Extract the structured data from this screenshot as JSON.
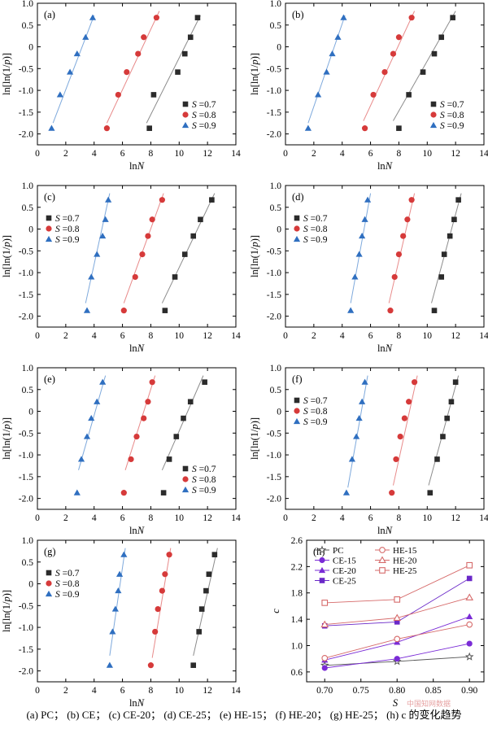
{
  "caption": "(a) PC； (b) CE； (c) CE-20； (d) CE-25； (e) HE-15； (f) HE-20； (g) HE-25； (h) c 的变化趋势",
  "watermark": "中国知网数据",
  "colors": {
    "s07": "#2b2b2b",
    "s08": "#d63a3a",
    "s09": "#2f6fc0",
    "fit07": "#8c8c8c",
    "fit08": "#e88a8a",
    "fit09": "#7ea9dc"
  },
  "chart_data": [
    {
      "type": "scatter",
      "label": "(a)",
      "xlabel": "lnN",
      "ylabel": "ln[ln(1/p)]",
      "xlim": [
        0,
        14
      ],
      "ylim": [
        -2.25,
        1.0
      ],
      "xticks": [
        "0",
        "2",
        "4",
        "6",
        "8",
        "10",
        "12",
        "14"
      ],
      "yticks": [
        "1.0",
        "0.5",
        "0",
        "-0.5",
        "-1.0",
        "-1.5",
        "-2.0"
      ],
      "legend": "bottom-right",
      "series": [
        {
          "name": "S =0.7",
          "marker": "square",
          "color": "#2b2b2b",
          "x": [
            7.9,
            8.2,
            9.9,
            10.4,
            10.8,
            11.3
          ],
          "y": [
            -1.87,
            -1.1,
            -0.58,
            -0.16,
            0.22,
            0.67
          ],
          "fit": [
            [
              7.7,
              -1.75
            ],
            [
              11.5,
              0.72
            ]
          ]
        },
        {
          "name": "S =0.8",
          "marker": "circle",
          "color": "#d63a3a",
          "x": [
            4.9,
            5.7,
            6.3,
            7.1,
            7.5,
            8.4
          ],
          "y": [
            -1.87,
            -1.1,
            -0.58,
            -0.16,
            0.22,
            0.67
          ],
          "fit": [
            [
              4.9,
              -1.75
            ],
            [
              8.6,
              0.82
            ]
          ]
        },
        {
          "name": "S =0.9",
          "marker": "triangle",
          "color": "#2f6fc0",
          "x": [
            1.0,
            1.6,
            2.3,
            2.8,
            3.4,
            3.9
          ],
          "y": [
            -1.87,
            -1.1,
            -0.58,
            -0.16,
            0.22,
            0.67
          ],
          "fit": [
            [
              1.1,
              -1.75
            ],
            [
              4.0,
              0.72
            ]
          ]
        }
      ]
    },
    {
      "type": "scatter",
      "label": "(b)",
      "xlabel": "lnN",
      "ylabel": "ln[ln(1/p)]",
      "xlim": [
        0,
        14
      ],
      "ylim": [
        -2.25,
        1.0
      ],
      "xticks": [
        "0",
        "2",
        "4",
        "6",
        "8",
        "10",
        "12",
        "14"
      ],
      "yticks": [
        "1.0",
        "0.5",
        "0",
        "-0.5",
        "-1.0",
        "-1.5",
        "-2.0"
      ],
      "legend": "bottom-right",
      "series": [
        {
          "name": "S =0.7",
          "marker": "square",
          "color": "#2b2b2b",
          "x": [
            8.0,
            8.7,
            9.7,
            10.5,
            11.0,
            11.8
          ],
          "y": [
            -1.87,
            -1.1,
            -0.58,
            -0.16,
            0.22,
            0.67
          ],
          "fit": [
            [
              7.6,
              -1.7
            ],
            [
              12.0,
              0.82
            ]
          ]
        },
        {
          "name": "S =0.8",
          "marker": "circle",
          "color": "#d63a3a",
          "x": [
            5.6,
            6.2,
            7.0,
            7.6,
            8.0,
            8.9
          ],
          "y": [
            -1.87,
            -1.1,
            -0.58,
            -0.16,
            0.22,
            0.67
          ],
          "fit": [
            [
              5.5,
              -1.7
            ],
            [
              9.1,
              0.82
            ]
          ]
        },
        {
          "name": "S =0.9",
          "marker": "triangle",
          "color": "#2f6fc0",
          "x": [
            1.6,
            2.3,
            2.9,
            3.3,
            3.7,
            4.1
          ],
          "y": [
            -1.87,
            -1.1,
            -0.58,
            -0.16,
            0.22,
            0.67
          ],
          "fit": [
            [
              1.6,
              -1.75
            ],
            [
              4.2,
              0.72
            ]
          ]
        }
      ]
    },
    {
      "type": "scatter",
      "label": "(c)",
      "xlabel": "lnN",
      "ylabel": "ln[ln(1/p)]",
      "xlim": [
        0,
        14
      ],
      "ylim": [
        -2.25,
        1.0
      ],
      "xticks": [
        "0",
        "2",
        "4",
        "6",
        "8",
        "10",
        "12",
        "14"
      ],
      "yticks": [
        "1.0",
        "0.5",
        "0",
        "-0.5",
        "-1.0",
        "-1.5",
        "-2.0"
      ],
      "legend": "top-left",
      "series": [
        {
          "name": "S =0.7",
          "marker": "square",
          "color": "#2b2b2b",
          "x": [
            9.0,
            9.7,
            10.4,
            11.0,
            11.5,
            12.3
          ],
          "y": [
            -1.87,
            -1.1,
            -0.58,
            -0.16,
            0.22,
            0.67
          ],
          "fit": [
            [
              8.8,
              -1.7
            ],
            [
              12.5,
              0.82
            ]
          ]
        },
        {
          "name": "S =0.8",
          "marker": "circle",
          "color": "#d63a3a",
          "x": [
            6.1,
            6.9,
            7.4,
            7.8,
            8.1,
            8.8
          ],
          "y": [
            -1.87,
            -1.1,
            -0.58,
            -0.16,
            0.22,
            0.67
          ],
          "fit": [
            [
              6.1,
              -1.7
            ],
            [
              8.9,
              0.82
            ]
          ]
        },
        {
          "name": "S =0.9",
          "marker": "triangle",
          "color": "#2f6fc0",
          "x": [
            3.5,
            3.8,
            4.2,
            4.6,
            4.8,
            5.0
          ],
          "y": [
            -1.87,
            -1.1,
            -0.58,
            -0.16,
            0.22,
            0.67
          ],
          "fit": [
            [
              3.4,
              -1.7
            ],
            [
              5.1,
              0.82
            ]
          ]
        }
      ]
    },
    {
      "type": "scatter",
      "label": "(d)",
      "xlabel": "lnN",
      "ylabel": "ln[ln(1/p)]",
      "xlim": [
        0,
        14
      ],
      "ylim": [
        -2.25,
        1.0
      ],
      "xticks": [
        "0",
        "2",
        "4",
        "6",
        "8",
        "10",
        "12",
        "14"
      ],
      "yticks": [
        "1.0",
        "0.5",
        "0",
        "-0.5",
        "-1.0",
        "-1.5",
        "-2.0"
      ],
      "legend": "top-left",
      "series": [
        {
          "name": "S =0.7",
          "marker": "square",
          "color": "#2b2b2b",
          "x": [
            10.5,
            11.0,
            11.2,
            11.6,
            11.9,
            12.2
          ],
          "y": [
            -1.87,
            -1.1,
            -0.58,
            -0.16,
            0.22,
            0.67
          ],
          "fit": [
            [
              10.3,
              -1.7
            ],
            [
              12.4,
              0.82
            ]
          ]
        },
        {
          "name": "S =0.8",
          "marker": "circle",
          "color": "#d63a3a",
          "x": [
            7.4,
            7.7,
            8.0,
            8.3,
            8.6,
            8.9
          ],
          "y": [
            -1.87,
            -1.1,
            -0.58,
            -0.16,
            0.22,
            0.67
          ],
          "fit": [
            [
              7.3,
              -1.7
            ],
            [
              9.1,
              0.82
            ]
          ]
        },
        {
          "name": "S =0.9",
          "marker": "triangle",
          "color": "#2f6fc0",
          "x": [
            4.6,
            4.9,
            5.2,
            5.4,
            5.6,
            5.8
          ],
          "y": [
            -1.87,
            -1.1,
            -0.58,
            -0.16,
            0.22,
            0.67
          ],
          "fit": [
            [
              4.6,
              -1.7
            ],
            [
              6.0,
              0.82
            ]
          ]
        }
      ]
    },
    {
      "type": "scatter",
      "label": "(e)",
      "xlabel": "lnN",
      "ylabel": "ln[ln(1/p)]",
      "xlim": [
        0,
        14
      ],
      "ylim": [
        -2.25,
        1.0
      ],
      "xticks": [
        "0",
        "2",
        "4",
        "6",
        "8",
        "10",
        "12",
        "14"
      ],
      "yticks": [
        "1.0",
        "0.5",
        "0",
        "-0.5",
        "-1.0",
        "-1.5",
        "-2.0"
      ],
      "legend": "bottom-right",
      "series": [
        {
          "name": "S =0.7",
          "marker": "square",
          "color": "#2b2b2b",
          "x": [
            8.9,
            9.3,
            9.8,
            10.3,
            10.8,
            11.8
          ],
          "y": [
            -1.87,
            -1.1,
            -0.58,
            -0.16,
            0.22,
            0.67
          ],
          "fit": [
            [
              8.8,
              -1.35
            ],
            [
              11.7,
              0.82
            ]
          ]
        },
        {
          "name": "S =0.8",
          "marker": "circle",
          "color": "#d63a3a",
          "x": [
            6.1,
            6.6,
            7.0,
            7.5,
            7.8,
            8.1
          ],
          "y": [
            -1.87,
            -1.1,
            -0.58,
            -0.16,
            0.22,
            0.67
          ],
          "fit": [
            [
              6.2,
              -1.35
            ],
            [
              8.3,
              0.82
            ]
          ]
        },
        {
          "name": "S =0.9",
          "marker": "triangle",
          "color": "#2f6fc0",
          "x": [
            2.8,
            3.1,
            3.5,
            3.8,
            4.2,
            4.6
          ],
          "y": [
            -1.87,
            -1.1,
            -0.58,
            -0.16,
            0.22,
            0.67
          ],
          "fit": [
            [
              2.9,
              -1.35
            ],
            [
              4.8,
              0.82
            ]
          ]
        }
      ]
    },
    {
      "type": "scatter",
      "label": "(f)",
      "xlabel": "lnN",
      "ylabel": "ln[ln(1/p)]",
      "xlim": [
        0,
        14
      ],
      "ylim": [
        -2.25,
        1.0
      ],
      "xticks": [
        "0",
        "2",
        "4",
        "6",
        "8",
        "10",
        "12",
        "14"
      ],
      "yticks": [
        "1.0",
        "0.5",
        "0",
        "-0.5",
        "-1.0",
        "-1.5",
        "-2.0"
      ],
      "legend": "top-left",
      "series": [
        {
          "name": "S =0.7",
          "marker": "square",
          "color": "#2b2b2b",
          "x": [
            10.2,
            10.7,
            11.1,
            11.4,
            11.7,
            12.0
          ],
          "y": [
            -1.87,
            -1.1,
            -0.58,
            -0.16,
            0.22,
            0.67
          ],
          "fit": [
            [
              10.1,
              -1.7
            ],
            [
              12.2,
              0.82
            ]
          ]
        },
        {
          "name": "S =0.8",
          "marker": "circle",
          "color": "#d63a3a",
          "x": [
            7.5,
            7.8,
            8.1,
            8.4,
            8.7,
            9.1
          ],
          "y": [
            -1.87,
            -1.1,
            -0.58,
            -0.16,
            0.22,
            0.67
          ],
          "fit": [
            [
              7.6,
              -1.7
            ],
            [
              9.3,
              0.82
            ]
          ]
        },
        {
          "name": "S =0.9",
          "marker": "triangle",
          "color": "#2f6fc0",
          "x": [
            4.3,
            4.7,
            5.0,
            5.2,
            5.4,
            5.6
          ],
          "y": [
            -1.87,
            -1.1,
            -0.58,
            -0.16,
            0.22,
            0.67
          ],
          "fit": [
            [
              4.4,
              -1.75
            ],
            [
              5.8,
              0.82
            ]
          ]
        }
      ]
    },
    {
      "type": "scatter",
      "label": "(g)",
      "xlabel": "lnN",
      "ylabel": "ln[ln(1/p)]",
      "xlim": [
        0,
        14
      ],
      "ylim": [
        -2.25,
        1.0
      ],
      "xticks": [
        "0",
        "2",
        "4",
        "6",
        "8",
        "10",
        "12",
        "14"
      ],
      "yticks": [
        "1.0",
        "0.5",
        "0",
        "-0.5",
        "-1.0",
        "-1.5",
        "-2.0"
      ],
      "legend": "top-left",
      "series": [
        {
          "name": "S =0.7",
          "marker": "square",
          "color": "#2b2b2b",
          "x": [
            11.0,
            11.4,
            11.6,
            11.9,
            12.1,
            12.5
          ],
          "y": [
            -1.87,
            -1.1,
            -0.58,
            -0.16,
            0.22,
            0.67
          ],
          "fit": [
            [
              11.0,
              -1.65
            ],
            [
              12.7,
              0.82
            ]
          ]
        },
        {
          "name": "S =0.8",
          "marker": "circle",
          "color": "#d63a3a",
          "x": [
            8.0,
            8.3,
            8.5,
            8.8,
            9.0,
            9.3
          ],
          "y": [
            -1.87,
            -1.1,
            -0.58,
            -0.16,
            0.22,
            0.67
          ],
          "fit": [
            [
              8.1,
              -1.7
            ],
            [
              9.4,
              0.82
            ]
          ]
        },
        {
          "name": "S =0.9",
          "marker": "triangle",
          "color": "#2f6fc0",
          "x": [
            5.1,
            5.3,
            5.5,
            5.7,
            5.8,
            6.1
          ],
          "y": [
            -1.87,
            -1.1,
            -0.58,
            -0.16,
            0.22,
            0.67
          ],
          "fit": [
            [
              5.1,
              -1.65
            ],
            [
              6.2,
              0.82
            ]
          ]
        }
      ]
    },
    {
      "type": "line",
      "label": "(h)",
      "xlabel": "S",
      "ylabel": "c",
      "xlim": [
        0.675,
        0.92
      ],
      "ylim": [
        0.45,
        2.6
      ],
      "xticks": [
        "0.70",
        "0.75",
        "0.80",
        "0.85",
        "0.90"
      ],
      "xtick_values": [
        0.7,
        0.75,
        0.8,
        0.85,
        0.9
      ],
      "yticks": [
        "0.6",
        "1.0",
        "1.4",
        "1.8",
        "2.2",
        "2.6"
      ],
      "ytick_values": [
        0.6,
        1.0,
        1.4,
        1.8,
        2.2,
        2.6
      ],
      "legend": "top-left",
      "x": [
        0.7,
        0.8,
        0.9
      ],
      "series": [
        {
          "name": "PC",
          "marker": "star",
          "color": "#555555",
          "values": [
            0.7,
            0.76,
            0.83
          ]
        },
        {
          "name": "CE-15",
          "marker": "circle-filled",
          "color": "#7a2bd6",
          "values": [
            0.66,
            0.8,
            1.03
          ]
        },
        {
          "name": "CE-20",
          "marker": "triangle-filled",
          "color": "#7a2bd6",
          "values": [
            0.78,
            1.05,
            1.44
          ]
        },
        {
          "name": "CE-25",
          "marker": "square-filled",
          "color": "#6a28c8",
          "values": [
            1.3,
            1.36,
            2.02
          ]
        },
        {
          "name": "HE-15",
          "marker": "circle-open",
          "color": "#d66a6a",
          "values": [
            0.81,
            1.1,
            1.32
          ]
        },
        {
          "name": "HE-20",
          "marker": "triangle-open",
          "color": "#d66a6a",
          "values": [
            1.32,
            1.42,
            1.73
          ]
        },
        {
          "name": "HE-25",
          "marker": "square-open",
          "color": "#d66a6a",
          "values": [
            1.65,
            1.7,
            2.22
          ]
        }
      ]
    }
  ]
}
